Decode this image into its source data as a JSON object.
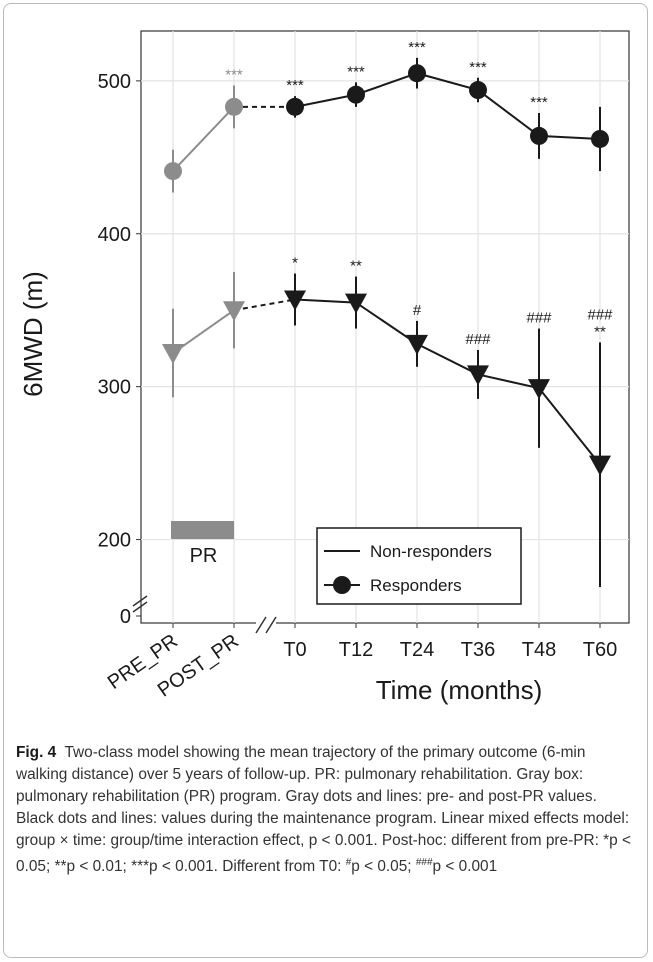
{
  "chart_data": {
    "type": "line",
    "y_label": "6MWD (m)",
    "x_label": "Time (months)",
    "categories": [
      "PRE_PR",
      "POST_PR",
      "T0",
      "T12",
      "T24",
      "T36",
      "T48",
      "T60"
    ],
    "ylim": [
      0,
      530
    ],
    "axis_break": [
      0,
      150
    ],
    "yticks": [
      0,
      200,
      300,
      400,
      500
    ],
    "grid": true,
    "pre_program_color": "#8c8c8c",
    "pr_label": "PR",
    "legend": "bottom-right",
    "series": [
      {
        "name": "Non-responders",
        "marker": "triangle",
        "color": "#1a1a1a",
        "values": [
          322,
          350,
          357,
          355,
          328,
          308,
          299,
          249
        ],
        "errors": [
          29,
          25,
          17,
          17,
          15,
          16,
          39,
          80
        ],
        "annotations": [
          [],
          [],
          [
            "*"
          ],
          [
            "**"
          ],
          [
            "#"
          ],
          [
            "###"
          ],
          [
            "###"
          ],
          [
            "###",
            "**"
          ]
        ]
      },
      {
        "name": "Responders",
        "marker": "circle",
        "color": "#1a1a1a",
        "values": [
          441,
          483,
          483,
          491,
          505,
          494,
          464,
          462
        ],
        "errors": [
          14,
          14,
          7,
          8,
          10,
          8,
          15,
          21
        ],
        "annotations": [
          [],
          [
            "***"
          ],
          [
            "***"
          ],
          [
            "***"
          ],
          [
            "***"
          ],
          [
            "***"
          ],
          [
            "***"
          ],
          []
        ]
      }
    ]
  },
  "caption": {
    "label": "Fig. 4",
    "parts": [
      {
        "text": "Two-class model showing the mean trajectory of the primary outcome (6-min walking distance) over 5 years of follow-up. PR: pulmonary rehabilitation. Gray box: pulmonary rehabilitation (PR) program. Gray dots and lines: pre- and post-PR values. Black dots and lines: values during the maintenance program. Linear mixed effects model: group × time: group/time interaction effect, p < 0.001. Post-hoc: different from pre-PR: *p < 0.05; **p < 0.01; ***p < 0.001. Different from T0: "
      },
      {
        "text": "#",
        "sup": true
      },
      {
        "text": "p < 0.05; "
      },
      {
        "text": "###",
        "sup": true
      },
      {
        "text": "p < 0.001"
      }
    ]
  }
}
